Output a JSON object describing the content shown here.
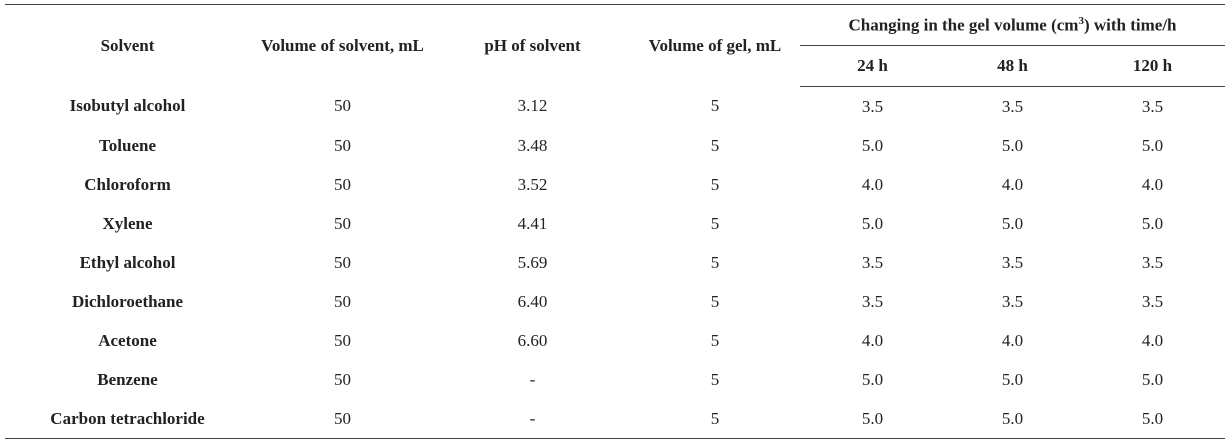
{
  "header": {
    "columns": [
      "Solvent",
      "Volume of solvent, mL",
      "pH of solvent",
      "Volume of gel, mL"
    ],
    "group": {
      "before": "Changing in the gel volume (cm",
      "sup": "3",
      "after": ") with time/h"
    },
    "subcolumns": [
      "24 h",
      "48 h",
      "120 h"
    ]
  },
  "table": {
    "rows": [
      [
        "Isobutyl alcohol",
        "50",
        "3.12",
        "5",
        "3.5",
        "3.5",
        "3.5"
      ],
      [
        "Toluene",
        "50",
        "3.48",
        "5",
        "5.0",
        "5.0",
        "5.0"
      ],
      [
        "Chloroform",
        "50",
        "3.52",
        "5",
        "4.0",
        "4.0",
        "4.0"
      ],
      [
        "Xylene",
        "50",
        "4.41",
        "5",
        "5.0",
        "5.0",
        "5.0"
      ],
      [
        "Ethyl alcohol",
        "50",
        "5.69",
        "5",
        "3.5",
        "3.5",
        "3.5"
      ],
      [
        "Dichloroethane",
        "50",
        "6.40",
        "5",
        "3.5",
        "3.5",
        "3.5"
      ],
      [
        "Acetone",
        "50",
        "6.60",
        "5",
        "4.0",
        "4.0",
        "4.0"
      ],
      [
        "Benzene",
        "50",
        "-",
        "5",
        "5.0",
        "5.0",
        "5.0"
      ],
      [
        "Carbon tetrachloride",
        "50",
        "-",
        "5",
        "5.0",
        "5.0",
        "5.0"
      ]
    ]
  }
}
